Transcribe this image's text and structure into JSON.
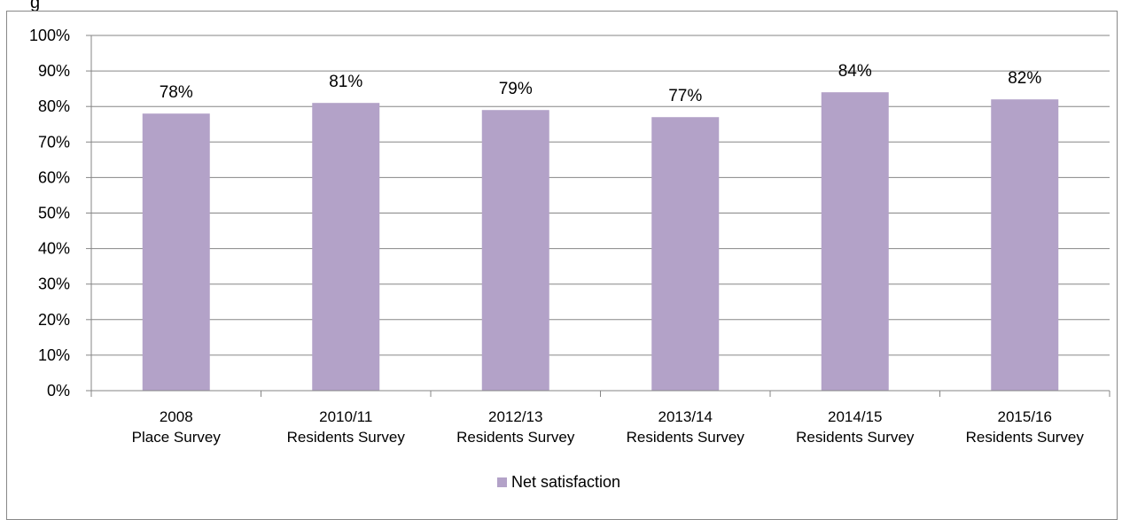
{
  "chart_data": {
    "type": "bar",
    "title": "",
    "xlabel": "",
    "ylabel": "",
    "ylim": [
      0,
      100
    ],
    "y_ticks": [
      "0%",
      "10%",
      "20%",
      "30%",
      "40%",
      "50%",
      "60%",
      "70%",
      "80%",
      "90%",
      "100%"
    ],
    "categories": [
      [
        "2008",
        "Place Survey"
      ],
      [
        "2010/11",
        "Residents Survey"
      ],
      [
        "2012/13",
        "Residents Survey"
      ],
      [
        "2013/14",
        "Residents Survey"
      ],
      [
        "2014/15",
        "Residents Survey"
      ],
      [
        "2015/16",
        "Residents Survey"
      ]
    ],
    "series": [
      {
        "name": "Net satisfaction",
        "values": [
          78,
          81,
          79,
          77,
          84,
          82
        ],
        "labels": [
          "78%",
          "81%",
          "79%",
          "77%",
          "84%",
          "82%"
        ],
        "color": "#b3a2c8"
      }
    ],
    "grid": true,
    "legend_position": "bottom"
  },
  "colors": {
    "gridline": "#868686",
    "axis": "#868686",
    "text": "#000000"
  },
  "partial_title": "g"
}
